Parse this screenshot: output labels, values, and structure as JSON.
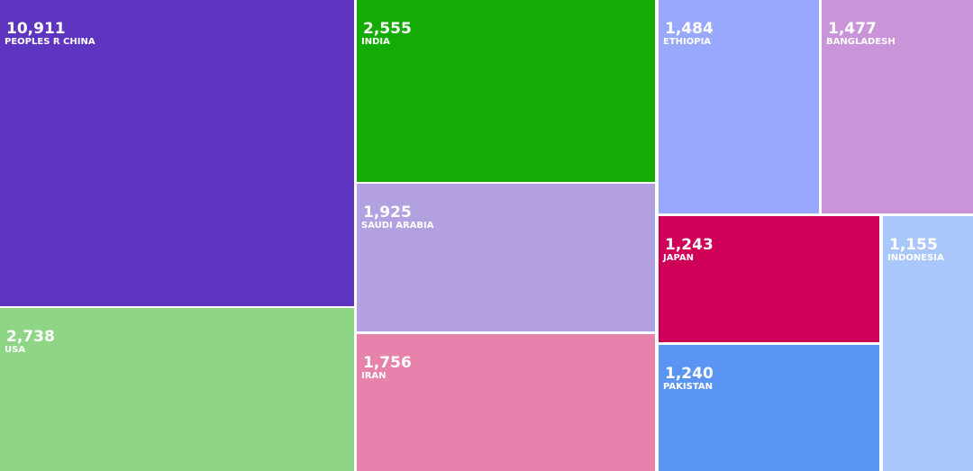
{
  "chart_data": {
    "type": "treemap",
    "categories": [
      "PEOPLES R CHINA",
      "USA",
      "INDIA",
      "SAUDI ARABIA",
      "IRAN",
      "ETHIOPIA",
      "BANGLADESH",
      "JAPAN",
      "PAKISTAN",
      "INDONESIA"
    ],
    "values": [
      10911,
      2738,
      2555,
      1925,
      1756,
      1484,
      1477,
      1243,
      1240,
      1155
    ],
    "value_labels": [
      "10,911",
      "2,738",
      "2,555",
      "1,925",
      "1,756",
      "1,484",
      "1,477",
      "1,243",
      "1,240",
      "1,155"
    ],
    "colors": [
      "#5e35c1",
      "#8ed685",
      "#14ab05",
      "#b3a0e0",
      "#e682ab",
      "#98a8fe",
      "#c994d8",
      "#cf0058",
      "#5b95f3",
      "#aac7fb"
    ]
  }
}
